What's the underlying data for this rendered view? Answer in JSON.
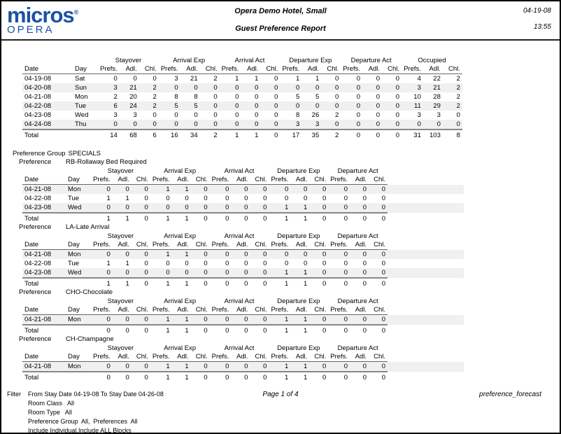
{
  "header": {
    "logo_brand": "micros",
    "logo_reg": "®",
    "logo_sub": "OPERA",
    "logo_color": "#1a52a2",
    "hotel_title": "Opera Demo Hotel, Small",
    "report_title": "Guest Preference Report",
    "date": "04-19-08",
    "time": "13:55"
  },
  "columns": {
    "date_label": "Date",
    "day_label": "Day",
    "groups_main": [
      "Stayover",
      "Arrival Exp",
      "Arrival Act",
      "Departure Exp",
      "Departure Act",
      "Occupied"
    ],
    "groups_sub": [
      "Stayover",
      "Arrival Exp",
      "Arrival Act",
      "Departure Exp",
      "Departure Act"
    ],
    "sub_headers": [
      "Prefs.",
      "Adl.",
      "Chl."
    ],
    "total_label": "Total"
  },
  "main_table": {
    "rows": [
      {
        "date": "04-19-08",
        "day": "Sat",
        "values": [
          0,
          0,
          0,
          3,
          21,
          2,
          1,
          1,
          0,
          1,
          1,
          0,
          0,
          0,
          0,
          4,
          22,
          2
        ]
      },
      {
        "date": "04-20-08",
        "day": "Sun",
        "values": [
          3,
          21,
          2,
          0,
          0,
          0,
          0,
          0,
          0,
          0,
          0,
          0,
          0,
          0,
          0,
          3,
          21,
          2
        ]
      },
      {
        "date": "04-21-08",
        "day": "Mon",
        "values": [
          2,
          20,
          2,
          8,
          8,
          0,
          0,
          0,
          0,
          5,
          5,
          0,
          0,
          0,
          0,
          10,
          28,
          2
        ]
      },
      {
        "date": "04-22-08",
        "day": "Tue",
        "values": [
          6,
          24,
          2,
          5,
          5,
          0,
          0,
          0,
          0,
          0,
          0,
          0,
          0,
          0,
          0,
          11,
          29,
          2
        ]
      },
      {
        "date": "04-23-08",
        "day": "Wed",
        "values": [
          3,
          3,
          0,
          0,
          0,
          0,
          0,
          0,
          0,
          8,
          26,
          2,
          0,
          0,
          0,
          3,
          3,
          0
        ]
      },
      {
        "date": "04-24-08",
        "day": "Thu",
        "values": [
          0,
          0,
          0,
          0,
          0,
          0,
          0,
          0,
          0,
          3,
          3,
          0,
          0,
          0,
          0,
          0,
          0,
          0
        ]
      }
    ],
    "total": [
      14,
      68,
      6,
      16,
      34,
      2,
      1,
      1,
      0,
      17,
      35,
      2,
      0,
      0,
      0,
      31,
      103,
      8
    ]
  },
  "sections": {
    "group_label": "Preference Group",
    "group_value": "SPECIALS",
    "preference_label": "Preference"
  },
  "preference_tables": [
    {
      "name": "RB-Rollaway Bed Required",
      "rows": [
        {
          "date": "04-21-08",
          "day": "Mon",
          "values": [
            0,
            0,
            0,
            1,
            1,
            0,
            0,
            0,
            0,
            0,
            0,
            0,
            0,
            0,
            0
          ]
        },
        {
          "date": "04-22-08",
          "day": "Tue",
          "values": [
            1,
            1,
            0,
            0,
            0,
            0,
            0,
            0,
            0,
            0,
            0,
            0,
            0,
            0,
            0
          ]
        },
        {
          "date": "04-23-08",
          "day": "Wed",
          "values": [
            0,
            0,
            0,
            0,
            0,
            0,
            0,
            0,
            0,
            1,
            1,
            0,
            0,
            0,
            0
          ]
        }
      ],
      "total": [
        1,
        1,
        0,
        1,
        1,
        0,
        0,
        0,
        0,
        1,
        1,
        0,
        0,
        0,
        0
      ]
    },
    {
      "name": "LA-Late Arrival",
      "rows": [
        {
          "date": "04-21-08",
          "day": "Mon",
          "values": [
            0,
            0,
            0,
            1,
            1,
            0,
            0,
            0,
            0,
            0,
            0,
            0,
            0,
            0,
            0
          ]
        },
        {
          "date": "04-22-08",
          "day": "Tue",
          "values": [
            1,
            1,
            0,
            0,
            0,
            0,
            0,
            0,
            0,
            0,
            0,
            0,
            0,
            0,
            0
          ]
        },
        {
          "date": "04-23-08",
          "day": "Wed",
          "values": [
            0,
            0,
            0,
            0,
            0,
            0,
            0,
            0,
            0,
            1,
            1,
            0,
            0,
            0,
            0
          ]
        }
      ],
      "total": [
        1,
        1,
        0,
        1,
        1,
        0,
        0,
        0,
        0,
        1,
        1,
        0,
        0,
        0,
        0
      ]
    },
    {
      "name": "CHO-Chocolate",
      "rows": [
        {
          "date": "04-21-08",
          "day": "Mon",
          "values": [
            0,
            0,
            0,
            1,
            1,
            0,
            0,
            0,
            0,
            1,
            1,
            0,
            0,
            0,
            0
          ]
        }
      ],
      "total": [
        0,
        0,
        0,
        1,
        1,
        0,
        0,
        0,
        0,
        1,
        1,
        0,
        0,
        0,
        0
      ]
    },
    {
      "name": "CH-Champagne",
      "rows": [
        {
          "date": "04-21-08",
          "day": "Mon",
          "values": [
            0,
            0,
            0,
            1,
            1,
            0,
            0,
            0,
            0,
            1,
            1,
            0,
            0,
            0,
            0
          ]
        }
      ],
      "total": [
        0,
        0,
        0,
        1,
        1,
        0,
        0,
        0,
        0,
        1,
        1,
        0,
        0,
        0,
        0
      ]
    }
  ],
  "footer": {
    "filter_label": "Filter",
    "filter_lines": [
      "From Stay Date 04-19-08 To Stay Date 04-26-08",
      "Room Class   All",
      "Room Type   All",
      "Preference Group  All,  Preferences  All",
      "Include Individual,Include ALL Blocks"
    ],
    "page": "Page 1 of 4",
    "report_id": "preference_forecast"
  }
}
